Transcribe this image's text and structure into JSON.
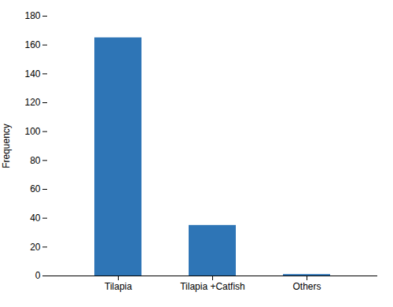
{
  "chart_data": {
    "type": "bar",
    "categories": [
      "Tilapia",
      "Tilapia +Catfish",
      "Others"
    ],
    "values": [
      165,
      35,
      1
    ],
    "color": "#2e75b6",
    "ylabel": "Frequency",
    "ylim": [
      0,
      180
    ],
    "yticks": [
      0,
      20,
      40,
      60,
      80,
      100,
      120,
      140,
      160,
      180
    ],
    "grid": false
  }
}
